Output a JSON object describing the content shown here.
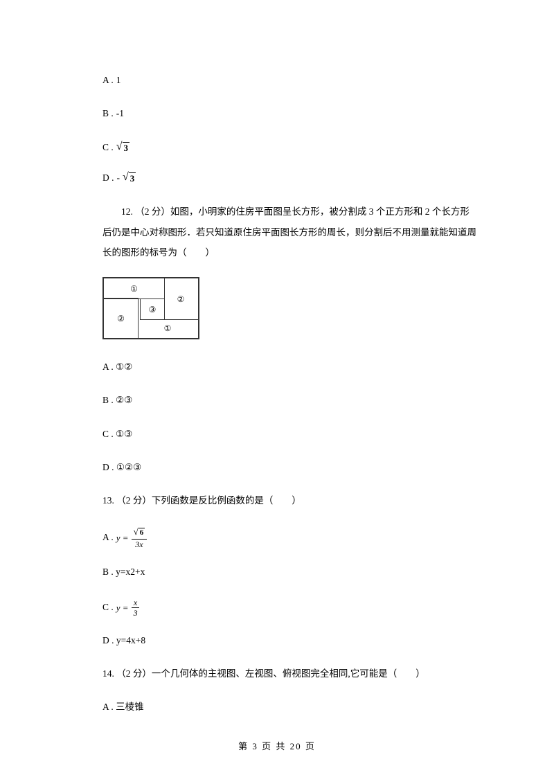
{
  "q11_options": {
    "a_prefix": "A . ",
    "a_value": "1",
    "b_prefix": "B . ",
    "b_value": "-1",
    "c_prefix": "C . ",
    "c_sqrt": "3",
    "d_prefix": "D . ",
    "d_neg": "-",
    "d_sqrt": "3"
  },
  "q12": {
    "number": "12. ",
    "points": "（2 分）",
    "text1": "如图，小明家的住房平面图呈长方形，被分割成 3 个正方形和 2 个长方形后仍是中心对称图形．若只知道原住房平面图长方形的周长，则分割后不用测量就能知道周长的图形的标号为（　　）",
    "diagram": {
      "labels": {
        "r1t": "①",
        "r2r": "②",
        "r2l": "②",
        "r3c": "③",
        "r1b": "①"
      }
    },
    "a": "A . ①②",
    "b": "B . ②③",
    "c": "C . ①③",
    "d": "D . ①②③"
  },
  "q13": {
    "stem": "13. （2 分）下列函数是反比例函数的是（　　）",
    "a_prefix": "A . ",
    "a_formula": {
      "lhs": "y = ",
      "num_sqrt": "6",
      "den": "3x"
    },
    "b": "B . y=x2+x",
    "c_prefix": "C . ",
    "c_formula": {
      "lhs": "y = ",
      "num": "x",
      "den": "3"
    },
    "d": "D . y=4x+8"
  },
  "q14": {
    "stem": "14. （2 分）一个几何体的主视图、左视图、俯视图完全相同,它可能是（　　）",
    "a": "A . 三棱锥"
  },
  "footer": "第 3 页 共 20 页"
}
